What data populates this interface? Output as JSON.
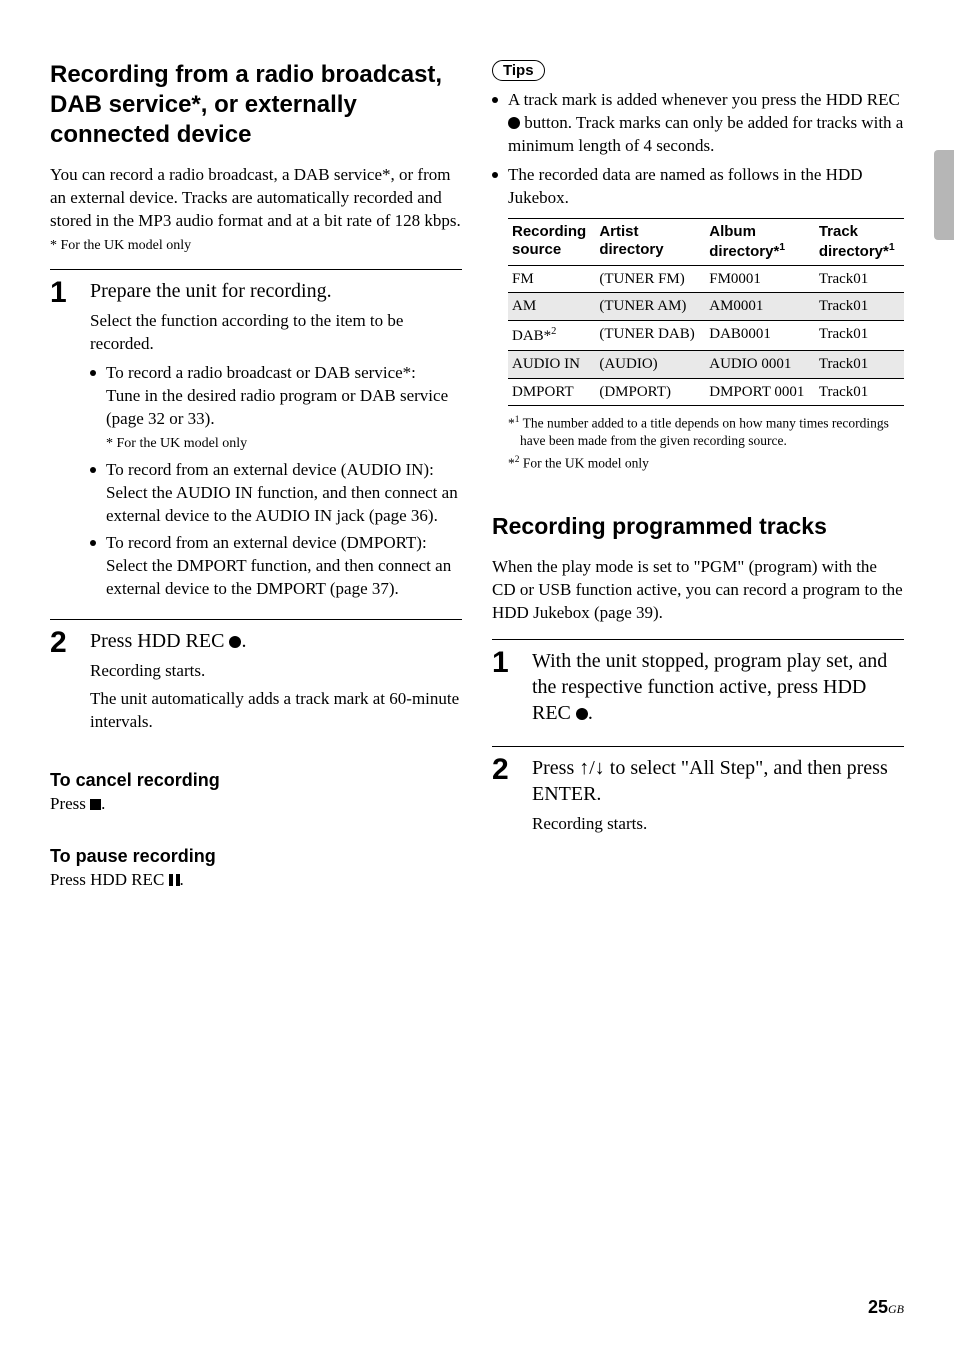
{
  "left": {
    "heading": "Recording from a radio broadcast, DAB service*, or externally connected device",
    "intro": "You can record a radio broadcast, a DAB service*, or from an external device. Tracks are automatically recorded and stored in the MP3 audio format and at a bit rate of 128 kbps.",
    "intro_note": "* For the UK model only",
    "step1": {
      "num": "1",
      "title": "Prepare the unit for recording.",
      "desc": "Select the function according to the item to be recorded.",
      "b1a": "To record a radio broadcast or DAB service*:",
      "b1b": "Tune in the desired radio program or DAB service (page 32 or 33).",
      "b1note": "*  For the UK model only",
      "b2a": "To record from an external device (AUDIO IN):",
      "b2b": "Select the AUDIO IN function, and then connect an external device to the AUDIO IN jack (page 36).",
      "b3a": "To record from an external device (DMPORT):",
      "b3b": "Select the DMPORT function, and then connect an external device to the DMPORT (page 37)."
    },
    "step2": {
      "num": "2",
      "title_pre": "Press HDD REC ",
      "title_post": ".",
      "desc1": "Recording starts.",
      "desc2": "The unit automatically adds a track mark at 60-minute intervals."
    },
    "cancel_h": "To cancel recording",
    "cancel_body_pre": "Press ",
    "cancel_body_post": ".",
    "pause_h": "To pause recording",
    "pause_body_pre": "Press HDD REC ",
    "pause_body_post": "."
  },
  "right": {
    "tips_label": "Tips",
    "tip1_pre": "A track mark is added whenever you press the HDD REC ",
    "tip1_post": " button. Track marks can only be added for tracks with a minimum length of 4 seconds.",
    "tip2": "The recorded data are named as follows in the HDD Jukebox.",
    "table": {
      "headers": {
        "c1a": "Recording",
        "c1b": "source",
        "c2a": "Artist",
        "c2b": "directory",
        "c3a": "Album",
        "c3b": "directory*",
        "c4a": "Track",
        "c4b": "directory*",
        "sup": "1"
      },
      "rows": [
        {
          "c1": "FM",
          "c2": "(TUNER FM)",
          "c3": "FM0001",
          "c4": "Track01",
          "alt": false
        },
        {
          "c1": "AM",
          "c2": "(TUNER AM)",
          "c3": "AM0001",
          "c4": "Track01",
          "alt": true
        },
        {
          "c1": "DAB*",
          "c1sup": "2",
          "c2": "(TUNER DAB)",
          "c3": "DAB0001",
          "c4": "Track01",
          "alt": false
        },
        {
          "c1": "AUDIO IN",
          "c2": "(AUDIO)",
          "c3": "AUDIO 0001",
          "c4": "Track01",
          "alt": true
        },
        {
          "c1": "DMPORT",
          "c2": "(DMPORT)",
          "c3": "DMPORT 0001",
          "c4": "Track01",
          "alt": false
        }
      ]
    },
    "tnote1_pre": "*",
    "tnote1_sup": "1",
    "tnote1": " The number added to a title depends on how many times recordings have been made from the given recording source.",
    "tnote2_pre": "*",
    "tnote2_sup": "2",
    "tnote2": " For the UK model only",
    "sub_heading": "Recording programmed tracks",
    "sub_intro": "When the play mode is set to \"PGM\" (program) with the CD or USB function active, you can record a program to the HDD Jukebox (page 39).",
    "rstep1": {
      "num": "1",
      "title_pre": "With the unit stopped, program play set, and the respective function active, press HDD REC ",
      "title_post": "."
    },
    "rstep2": {
      "num": "2",
      "title_pre": "Press ",
      "title_mid": " to select \"All Step\", and then press ENTER.",
      "desc": "Recording starts."
    }
  },
  "page_number": "25",
  "page_region": "GB"
}
